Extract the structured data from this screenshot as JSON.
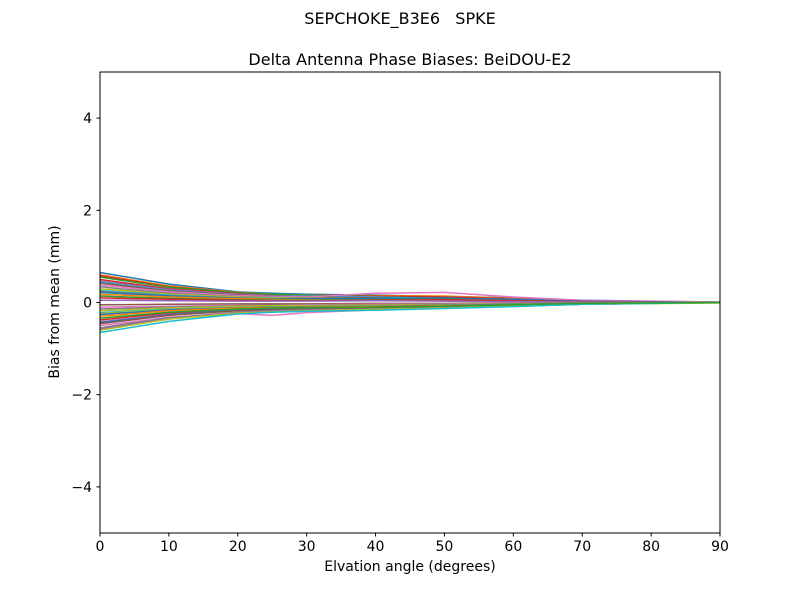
{
  "figure": {
    "suptitle": "SEPCHOKE_B3E6   SPKE",
    "background": "#ffffff"
  },
  "chart_data": {
    "type": "line",
    "title": "SEPCHOKE_B3E6   SPKE",
    "subtitle": "Delta Antenna Phase Biases: BeiDOU-E2",
    "xlabel": "Elvation angle (degrees)",
    "ylabel": "Bias from mean (mm)",
    "xlim": [
      0,
      90
    ],
    "ylim": [
      -5,
      5
    ],
    "xticks": [
      0,
      10,
      20,
      30,
      40,
      50,
      60,
      70,
      80,
      90
    ],
    "yticks": [
      -4,
      -2,
      0,
      2,
      4
    ],
    "xtick_labels": [
      "0",
      "10",
      "20",
      "30",
      "40",
      "50",
      "60",
      "70",
      "80",
      "90"
    ],
    "ytick_labels": [
      "−4",
      "−2",
      "0",
      "2",
      "4"
    ],
    "grid": false,
    "legend": "none",
    "axis_color": "#000000",
    "line_width": 1.5,
    "x": [
      0,
      10,
      20,
      25,
      30,
      40,
      50,
      60,
      70,
      90
    ],
    "series": [
      {
        "name": "trace-1",
        "color": "#1f77b4",
        "values": [
          0.65,
          0.4,
          0.23,
          0.2,
          0.18,
          0.16,
          0.13,
          0.1,
          0.05,
          0.0
        ]
      },
      {
        "name": "trace-2",
        "color": "#ff7f0e",
        "values": [
          0.6,
          0.36,
          0.22,
          0.18,
          0.16,
          0.15,
          0.14,
          0.09,
          0.04,
          0.01
        ]
      },
      {
        "name": "trace-3",
        "color": "#d62728",
        "values": [
          0.58,
          0.34,
          0.21,
          0.17,
          0.16,
          0.14,
          0.12,
          0.08,
          0.04,
          0.0
        ]
      },
      {
        "name": "trace-4",
        "color": "#2ca02c",
        "values": [
          0.55,
          0.33,
          0.21,
          0.18,
          0.16,
          0.13,
          0.11,
          0.08,
          0.04,
          0.0
        ]
      },
      {
        "name": "trace-5",
        "color": "#d62728",
        "values": [
          0.5,
          0.3,
          0.19,
          0.15,
          0.13,
          0.12,
          0.11,
          0.08,
          0.03,
          0.0
        ]
      },
      {
        "name": "trace-6",
        "color": "#9467bd",
        "values": [
          0.46,
          0.28,
          0.18,
          0.15,
          0.14,
          0.12,
          0.09,
          0.06,
          0.03,
          0.0
        ]
      },
      {
        "name": "trace-7",
        "color": "#17becf",
        "values": [
          0.44,
          0.26,
          0.16,
          0.14,
          0.13,
          0.11,
          0.09,
          0.07,
          0.03,
          0.0
        ]
      },
      {
        "name": "trace-8",
        "color": "#8c564b",
        "values": [
          0.42,
          0.25,
          0.16,
          0.14,
          0.12,
          0.1,
          0.08,
          0.06,
          0.03,
          0.0
        ]
      },
      {
        "name": "trace-9",
        "color": "#e377c2",
        "values": [
          0.38,
          0.23,
          0.15,
          0.13,
          0.12,
          0.2,
          0.22,
          0.12,
          0.05,
          0.01
        ]
      },
      {
        "name": "trace-10",
        "color": "#7f7f7f",
        "values": [
          0.34,
          0.2,
          0.13,
          0.11,
          0.1,
          0.09,
          0.07,
          0.05,
          0.02,
          0.0
        ]
      },
      {
        "name": "trace-11",
        "color": "#bcbd22",
        "values": [
          0.3,
          0.18,
          0.12,
          0.1,
          0.09,
          0.08,
          0.06,
          0.04,
          0.02,
          0.0
        ]
      },
      {
        "name": "trace-12",
        "color": "#17becf",
        "values": [
          0.26,
          0.16,
          0.1,
          0.09,
          0.08,
          0.07,
          0.05,
          0.04,
          0.02,
          0.0
        ]
      },
      {
        "name": "trace-13",
        "color": "#7f7f7f",
        "values": [
          0.24,
          0.15,
          0.1,
          0.08,
          0.07,
          0.06,
          0.05,
          0.03,
          0.02,
          0.0
        ]
      },
      {
        "name": "trace-14",
        "color": "#1f77b4",
        "values": [
          0.22,
          0.14,
          0.09,
          0.08,
          0.08,
          0.09,
          0.1,
          0.06,
          0.03,
          0.0
        ]
      },
      {
        "name": "trace-15",
        "color": "#ff7f0e",
        "values": [
          0.18,
          0.12,
          0.08,
          0.07,
          0.06,
          0.05,
          0.04,
          0.03,
          0.01,
          0.0
        ]
      },
      {
        "name": "trace-16",
        "color": "#2ca02c",
        "values": [
          0.14,
          0.09,
          0.06,
          0.05,
          0.05,
          0.06,
          0.07,
          0.04,
          0.02,
          0.0
        ]
      },
      {
        "name": "trace-17",
        "color": "#d62728",
        "values": [
          0.1,
          0.07,
          0.05,
          0.04,
          0.04,
          0.05,
          0.06,
          0.04,
          0.02,
          0.0
        ]
      },
      {
        "name": "trace-18",
        "color": "#9467bd",
        "values": [
          0.05,
          0.04,
          0.03,
          0.03,
          0.03,
          0.04,
          0.03,
          0.02,
          0.01,
          0.0
        ]
      },
      {
        "name": "trace-19",
        "color": "#8c564b",
        "values": [
          -0.05,
          -0.04,
          -0.03,
          -0.03,
          -0.03,
          -0.02,
          -0.02,
          -0.01,
          -0.01,
          0.0
        ]
      },
      {
        "name": "trace-20",
        "color": "#e377c2",
        "values": [
          -0.1,
          -0.08,
          -0.06,
          -0.06,
          -0.05,
          -0.04,
          -0.03,
          -0.02,
          -0.01,
          0.0
        ]
      },
      {
        "name": "trace-21",
        "color": "#7f7f7f",
        "values": [
          -0.14,
          -0.1,
          -0.07,
          -0.06,
          -0.06,
          -0.05,
          -0.04,
          -0.03,
          -0.01,
          0.0
        ]
      },
      {
        "name": "trace-22",
        "color": "#bcbd22",
        "values": [
          -0.18,
          -0.12,
          -0.08,
          -0.07,
          -0.07,
          -0.06,
          -0.05,
          -0.03,
          -0.02,
          0.0
        ]
      },
      {
        "name": "trace-23",
        "color": "#17becf",
        "values": [
          -0.22,
          -0.14,
          -0.1,
          -0.09,
          -0.08,
          -0.1,
          -0.11,
          -0.06,
          -0.03,
          0.0
        ]
      },
      {
        "name": "trace-24",
        "color": "#bcbd22",
        "values": [
          -0.24,
          -0.15,
          -0.1,
          -0.08,
          -0.07,
          -0.07,
          -0.06,
          -0.04,
          -0.02,
          0.0
        ]
      },
      {
        "name": "trace-25",
        "color": "#1f77b4",
        "values": [
          -0.26,
          -0.16,
          -0.11,
          -0.1,
          -0.09,
          -0.08,
          -0.06,
          -0.04,
          -0.02,
          0.0
        ]
      },
      {
        "name": "trace-26",
        "color": "#ff7f0e",
        "values": [
          -0.3,
          -0.18,
          -0.12,
          -0.11,
          -0.1,
          -0.09,
          -0.07,
          -0.05,
          -0.02,
          0.0
        ]
      },
      {
        "name": "trace-27",
        "color": "#d62728",
        "values": [
          -0.38,
          -0.23,
          -0.15,
          -0.13,
          -0.12,
          -0.1,
          -0.08,
          -0.06,
          -0.03,
          0.0
        ]
      },
      {
        "name": "trace-28",
        "color": "#9467bd",
        "values": [
          -0.42,
          -0.26,
          -0.17,
          -0.14,
          -0.13,
          -0.11,
          -0.09,
          -0.06,
          -0.03,
          0.0
        ]
      },
      {
        "name": "trace-29",
        "color": "#1f77b4",
        "values": [
          -0.44,
          -0.27,
          -0.17,
          -0.15,
          -0.13,
          -0.12,
          -0.09,
          -0.07,
          -0.03,
          0.0
        ]
      },
      {
        "name": "trace-30",
        "color": "#8c564b",
        "values": [
          -0.46,
          -0.28,
          -0.18,
          -0.16,
          -0.14,
          -0.12,
          -0.1,
          -0.07,
          -0.03,
          0.0
        ]
      },
      {
        "name": "trace-31",
        "color": "#e377c2",
        "values": [
          -0.5,
          -0.32,
          -0.24,
          -0.28,
          -0.22,
          -0.16,
          -0.12,
          -0.08,
          -0.03,
          0.0
        ]
      },
      {
        "name": "trace-32",
        "color": "#7f7f7f",
        "values": [
          -0.55,
          -0.33,
          -0.21,
          -0.18,
          -0.16,
          -0.14,
          -0.11,
          -0.08,
          -0.04,
          0.0
        ]
      },
      {
        "name": "trace-33",
        "color": "#9467bd",
        "values": [
          -0.58,
          -0.35,
          -0.22,
          -0.19,
          -0.17,
          -0.15,
          -0.12,
          -0.08,
          -0.04,
          0.0
        ]
      },
      {
        "name": "trace-34",
        "color": "#bcbd22",
        "values": [
          -0.6,
          -0.36,
          -0.23,
          -0.2,
          -0.18,
          -0.15,
          -0.12,
          -0.08,
          -0.04,
          -0.01
        ]
      },
      {
        "name": "trace-35",
        "color": "#17becf",
        "values": [
          -0.65,
          -0.41,
          -0.25,
          -0.21,
          -0.19,
          -0.17,
          -0.13,
          -0.09,
          -0.04,
          0.0
        ]
      },
      {
        "name": "trace-36",
        "color": "#2ca02c",
        "values": [
          -0.34,
          -0.21,
          -0.14,
          -0.12,
          -0.11,
          -0.1,
          -0.08,
          -0.05,
          -0.02,
          0.0
        ]
      }
    ]
  }
}
